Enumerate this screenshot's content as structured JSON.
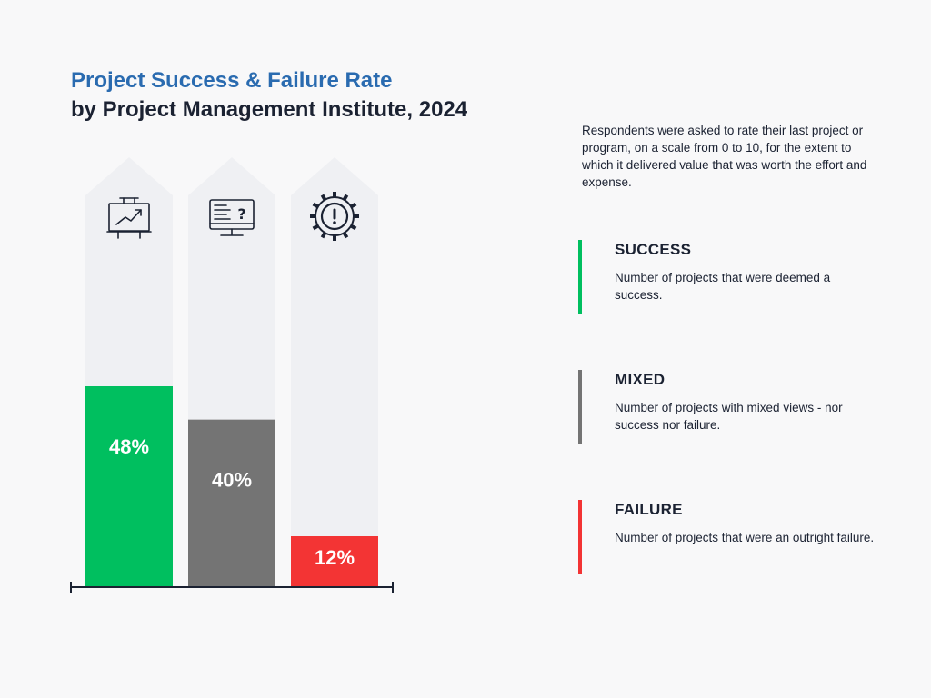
{
  "title": "Project Success & Failure Rate",
  "subtitle": "by Project Management Institute, 2024",
  "description": "Respondents were asked to rate their last project or program, on a scale from 0 to 10, for the extent to which it delivered value that was worth the effort and expense.",
  "chart_data": {
    "type": "bar",
    "categories": [
      "SUCCESS",
      "MIXED",
      "FAILURE"
    ],
    "values": [
      48,
      40,
      12
    ],
    "value_labels": [
      "48%",
      "40%",
      "12%"
    ],
    "ylim": [
      0,
      100
    ],
    "colors": [
      "#00bf5f",
      "#747474",
      "#f33434"
    ],
    "icons": [
      "presentation-board-icon",
      "monitor-question-icon",
      "gear-alert-icon"
    ],
    "xlabel": "",
    "ylabel": ""
  },
  "legend": [
    {
      "label": "SUCCESS",
      "text": "Number of projects that were deemed a success.",
      "color": "#00bf5f"
    },
    {
      "label": "MIXED",
      "text": "Number of projects with mixed views - nor success nor failure.",
      "color": "#747474"
    },
    {
      "label": "FAILURE",
      "text": "Number of projects that were an outright failure.",
      "color": "#f33434"
    }
  ]
}
